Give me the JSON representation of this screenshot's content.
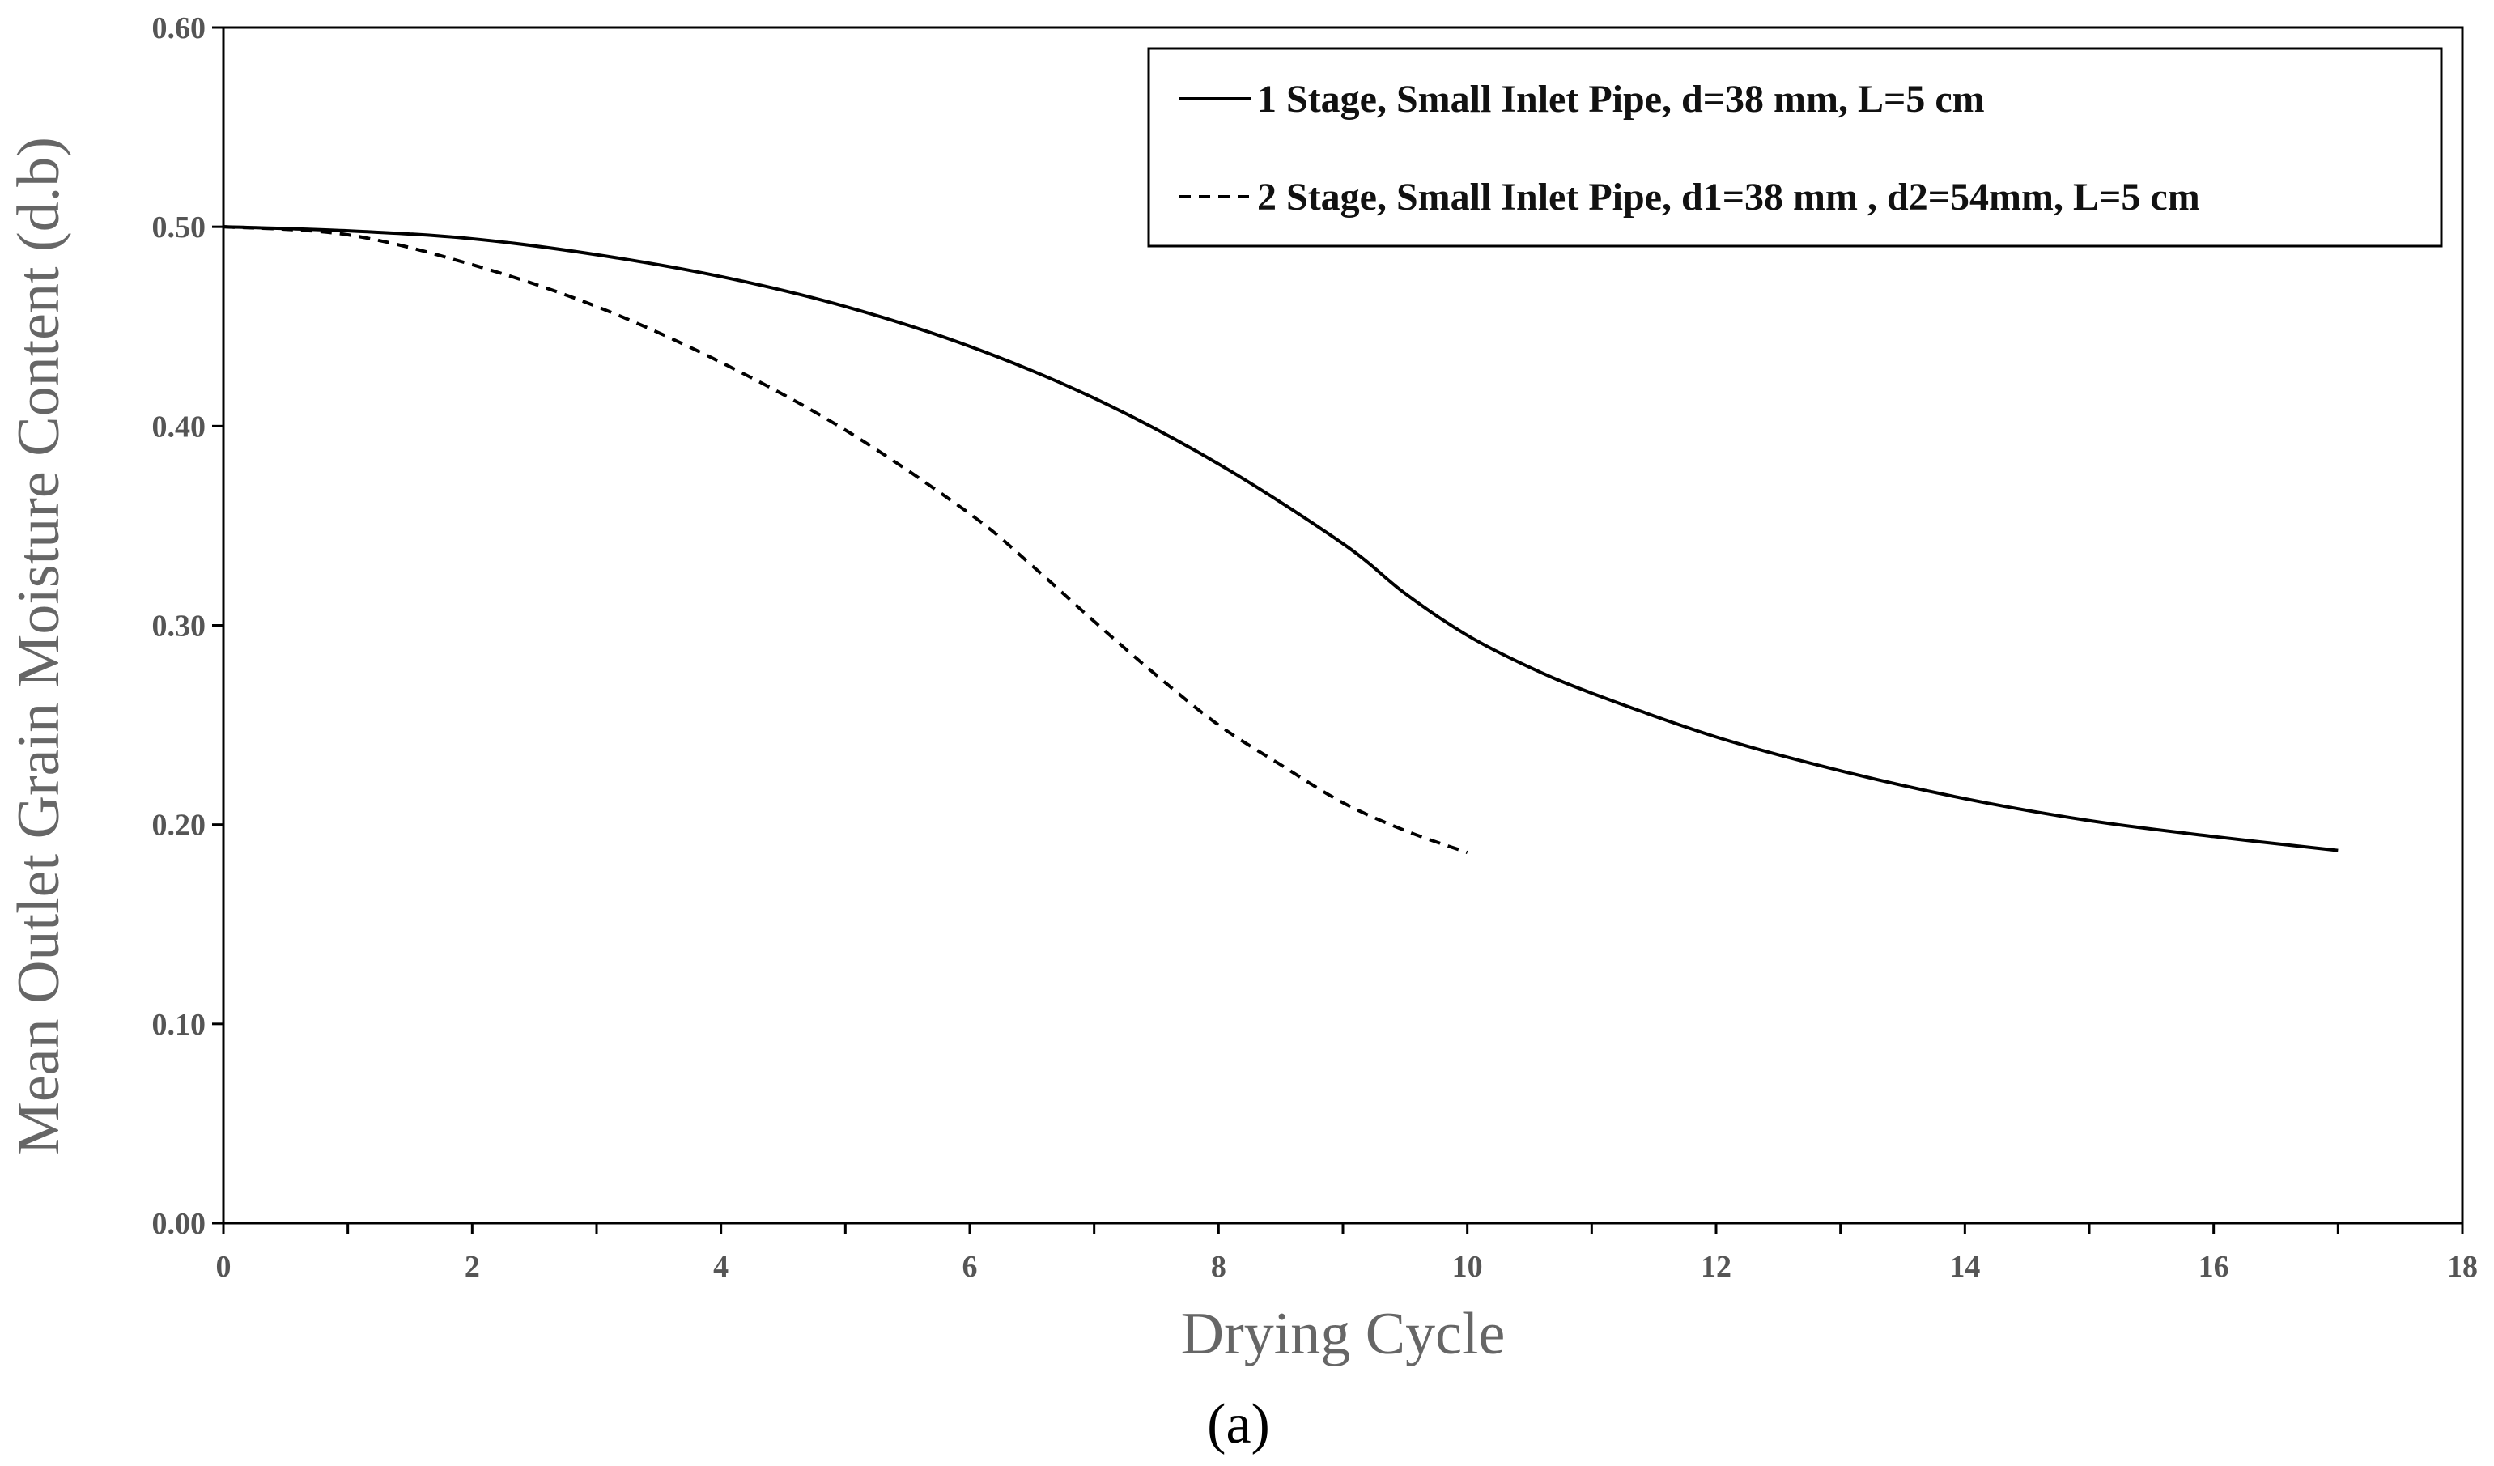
{
  "chart_data": {
    "type": "line",
    "title": "",
    "xlabel": "Drying Cycle",
    "ylabel": "Mean Outlet Grain Moisture Content (d.b)",
    "panel_label": "(a)",
    "xlim": [
      0,
      18
    ],
    "ylim": [
      0,
      0.6
    ],
    "x_ticks": [
      "0",
      "2",
      "4",
      "6",
      "8",
      "10",
      "12",
      "14",
      "16",
      "18"
    ],
    "y_ticks": [
      "0.00",
      "0.10",
      "0.20",
      "0.30",
      "0.40",
      "0.50",
      "0.60"
    ],
    "grid": false,
    "legend_position": "top-right",
    "series": [
      {
        "name": "1 Stage, Small Inlet Pipe, d=38 mm, L=5 cm",
        "style": "solid",
        "color": "#000000",
        "x": [
          0,
          1,
          2,
          3,
          4,
          5,
          6,
          7,
          8,
          9,
          9.5,
          10,
          10.5,
          11,
          12,
          13,
          14,
          15,
          16,
          17
        ],
        "y": [
          0.5,
          0.498,
          0.494,
          0.486,
          0.475,
          0.46,
          0.44,
          0.414,
          0.381,
          0.341,
          0.316,
          0.295,
          0.279,
          0.266,
          0.244,
          0.227,
          0.213,
          0.202,
          0.194,
          0.187
        ]
      },
      {
        "name": "2 Stage, Small Inlet Pipe, d1=38 mm , d2=54mm, L=5 cm",
        "style": "dashed",
        "color": "#000000",
        "x": [
          0,
          1,
          2,
          3,
          4,
          5,
          6,
          6.5,
          7,
          7.5,
          8,
          8.5,
          9,
          9.5,
          10
        ],
        "y": [
          0.5,
          0.496,
          0.481,
          0.46,
          0.432,
          0.398,
          0.356,
          0.33,
          0.302,
          0.275,
          0.25,
          0.23,
          0.211,
          0.197,
          0.186
        ]
      }
    ]
  }
}
